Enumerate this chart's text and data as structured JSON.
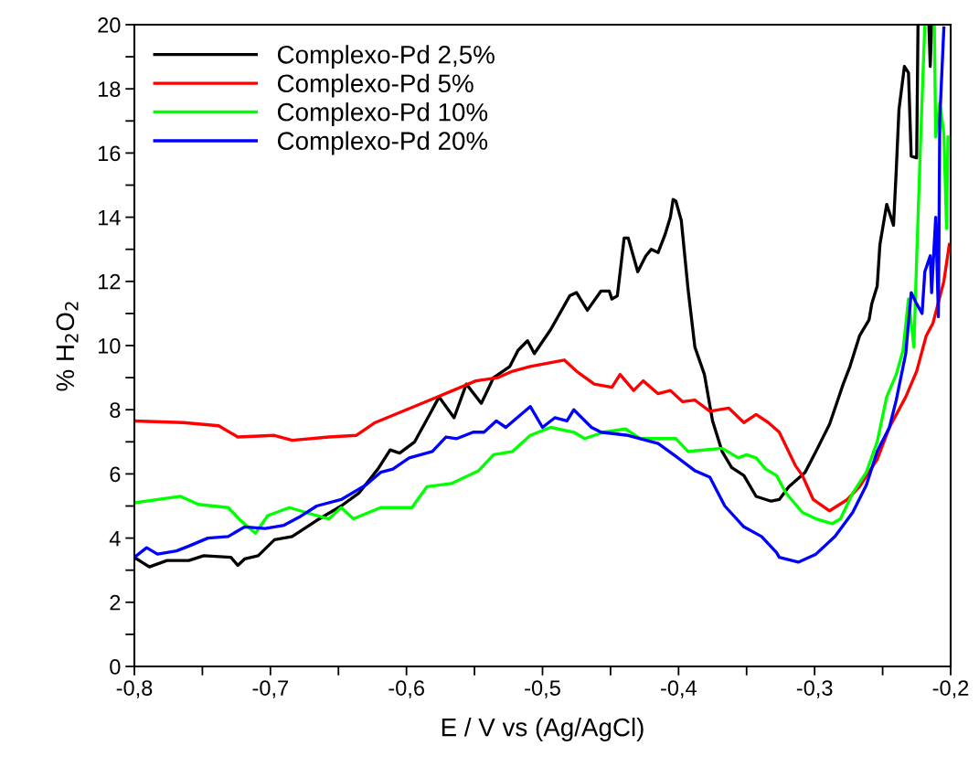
{
  "chart_data": {
    "type": "line",
    "xlabel": "E / V vs (Ag/AgCl)",
    "ylabel": "% H$_{2}$O$_{2}$",
    "xlim": [
      -0.8,
      -0.2
    ],
    "ylim": [
      0,
      20
    ],
    "xticks": [
      {
        "value": -0.8,
        "label": "-0,8"
      },
      {
        "value": -0.75,
        "label": null
      },
      {
        "value": -0.7,
        "label": "-0,7"
      },
      {
        "value": -0.65,
        "label": null
      },
      {
        "value": -0.6,
        "label": "-0,6"
      },
      {
        "value": -0.55,
        "label": null
      },
      {
        "value": -0.5,
        "label": "-0,5"
      },
      {
        "value": -0.45,
        "label": null
      },
      {
        "value": -0.4,
        "label": "-0,4"
      },
      {
        "value": -0.35,
        "label": null
      },
      {
        "value": -0.3,
        "label": "-0,3"
      },
      {
        "value": -0.25,
        "label": null
      },
      {
        "value": -0.2,
        "label": "-0,2"
      }
    ],
    "yticks": [
      0,
      {
        "value": 1,
        "label": null
      },
      2,
      {
        "value": 3,
        "label": null
      },
      4,
      {
        "value": 5,
        "label": null
      },
      6,
      {
        "value": 7,
        "label": null
      },
      8,
      {
        "value": 9,
        "label": null
      },
      10,
      {
        "value": 11,
        "label": null
      },
      12,
      {
        "value": 13,
        "label": null
      },
      14,
      {
        "value": 15,
        "label": null
      },
      16,
      {
        "value": 17,
        "label": null
      },
      18,
      {
        "value": 19,
        "label": null
      },
      20
    ],
    "grid": false,
    "legend": "top left",
    "marker": "none",
    "line_style": "solid",
    "series": [
      {
        "name": "Complexo-Pd 2,5%",
        "color": "#000000",
        "x": [
          -0.8,
          -0.789,
          -0.776,
          -0.76,
          -0.749,
          -0.729,
          -0.724,
          -0.719,
          -0.709,
          -0.697,
          -0.684,
          -0.666,
          -0.648,
          -0.635,
          -0.621,
          -0.612,
          -0.605,
          -0.594,
          -0.583,
          -0.576,
          -0.565,
          -0.556,
          -0.545,
          -0.536,
          -0.524,
          -0.518,
          -0.511,
          -0.506,
          -0.494,
          -0.48,
          -0.475,
          -0.467,
          -0.457,
          -0.451,
          -0.449,
          -0.445,
          -0.44,
          -0.437,
          -0.43,
          -0.424,
          -0.42,
          -0.415,
          -0.41,
          -0.406,
          -0.404,
          -0.402,
          -0.398,
          -0.393,
          -0.388,
          -0.381,
          -0.375,
          -0.368,
          -0.361,
          -0.352,
          -0.343,
          -0.332,
          -0.326,
          -0.319,
          -0.307,
          -0.299,
          -0.289,
          -0.283,
          -0.279,
          -0.274,
          -0.267,
          -0.26,
          -0.258,
          -0.254,
          -0.252,
          -0.247,
          -0.242,
          -0.24,
          -0.238,
          -0.234,
          -0.231,
          -0.229,
          -0.225,
          -0.224,
          -0.22,
          -0.216,
          -0.215,
          -0.214
        ],
        "values": [
          3.4,
          3.1,
          3.3,
          3.3,
          3.45,
          3.4,
          3.15,
          3.35,
          3.45,
          3.95,
          4.05,
          4.55,
          5.0,
          5.4,
          6.15,
          6.75,
          6.65,
          7.0,
          7.85,
          8.4,
          7.75,
          8.8,
          8.2,
          9.0,
          9.35,
          9.85,
          10.15,
          9.75,
          10.5,
          11.55,
          11.65,
          11.1,
          11.7,
          11.7,
          11.45,
          11.55,
          13.35,
          13.35,
          12.3,
          12.8,
          13.0,
          12.9,
          13.45,
          14.0,
          14.55,
          14.5,
          13.9,
          11.75,
          9.95,
          9.1,
          7.65,
          6.7,
          6.2,
          5.95,
          5.3,
          5.15,
          5.2,
          5.6,
          6.05,
          6.7,
          7.55,
          8.3,
          8.8,
          9.35,
          10.3,
          10.8,
          11.3,
          11.85,
          13.15,
          14.4,
          13.75,
          15.45,
          17.35,
          18.7,
          18.5,
          15.9,
          15.85,
          20.0,
          null,
          20.0,
          18.7,
          20.0
        ]
      },
      {
        "name": "Complexo-Pd 5%",
        "color": "#ff0000",
        "x": [
          -0.8,
          -0.764,
          -0.738,
          -0.724,
          -0.697,
          -0.684,
          -0.657,
          -0.637,
          -0.623,
          -0.603,
          -0.583,
          -0.563,
          -0.549,
          -0.533,
          -0.522,
          -0.509,
          -0.484,
          -0.475,
          -0.462,
          -0.449,
          -0.443,
          -0.433,
          -0.426,
          -0.415,
          -0.406,
          -0.397,
          -0.388,
          -0.377,
          -0.363,
          -0.352,
          -0.343,
          -0.334,
          -0.326,
          -0.314,
          -0.309,
          -0.301,
          -0.289,
          -0.276,
          -0.267,
          -0.254,
          -0.245,
          -0.233,
          -0.225,
          -0.218,
          -0.213,
          -0.205,
          -0.201
        ],
        "values": [
          7.65,
          7.6,
          7.5,
          7.15,
          7.2,
          7.05,
          7.15,
          7.2,
          7.6,
          7.95,
          8.3,
          8.65,
          8.9,
          9.0,
          9.2,
          9.35,
          9.55,
          9.2,
          8.8,
          8.7,
          9.1,
          8.6,
          8.9,
          8.5,
          8.6,
          8.25,
          8.3,
          7.95,
          8.05,
          7.6,
          7.85,
          7.6,
          7.3,
          6.25,
          5.95,
          5.2,
          4.85,
          5.2,
          5.6,
          6.45,
          7.45,
          8.4,
          9.2,
          10.3,
          10.7,
          12.0,
          13.15
        ]
      },
      {
        "name": "Complexo-Pd 10%",
        "color": "#00ff00",
        "x": [
          -0.8,
          -0.766,
          -0.753,
          -0.731,
          -0.722,
          -0.711,
          -0.702,
          -0.686,
          -0.67,
          -0.657,
          -0.648,
          -0.639,
          -0.619,
          -0.596,
          -0.585,
          -0.567,
          -0.547,
          -0.536,
          -0.522,
          -0.509,
          -0.494,
          -0.477,
          -0.469,
          -0.455,
          -0.439,
          -0.428,
          -0.415,
          -0.402,
          -0.393,
          -0.368,
          -0.356,
          -0.35,
          -0.343,
          -0.336,
          -0.328,
          -0.321,
          -0.309,
          -0.299,
          -0.287,
          -0.281,
          -0.272,
          -0.262,
          -0.254,
          -0.247,
          -0.24,
          -0.235,
          -0.231,
          -0.227,
          -0.225,
          -0.222,
          -0.219,
          -0.215,
          -0.212,
          -0.211,
          -0.208,
          -0.205,
          -0.203,
          -0.202
        ],
        "values": [
          5.1,
          5.3,
          5.05,
          4.95,
          4.55,
          4.15,
          4.7,
          4.95,
          4.75,
          4.6,
          4.95,
          4.6,
          4.95,
          4.95,
          5.6,
          5.7,
          6.1,
          6.6,
          6.7,
          7.2,
          7.45,
          7.3,
          7.1,
          7.3,
          7.4,
          7.1,
          7.1,
          7.1,
          6.7,
          6.8,
          6.5,
          6.6,
          6.5,
          6.15,
          5.95,
          5.4,
          4.8,
          4.6,
          4.45,
          4.6,
          5.4,
          6.05,
          7.0,
          8.4,
          9.1,
          9.85,
          11.45,
          9.95,
          12.7,
          16.5,
          20.0,
          null,
          20.0,
          16.5,
          17.55,
          16.6,
          13.65,
          16.5
        ]
      },
      {
        "name": "Complexo-Pd 20%",
        "color": "#0000ff",
        "x": [
          -0.8,
          -0.791,
          -0.783,
          -0.769,
          -0.76,
          -0.746,
          -0.731,
          -0.719,
          -0.704,
          -0.69,
          -0.679,
          -0.666,
          -0.648,
          -0.63,
          -0.619,
          -0.61,
          -0.598,
          -0.581,
          -0.571,
          -0.563,
          -0.551,
          -0.543,
          -0.534,
          -0.527,
          -0.509,
          -0.5,
          -0.491,
          -0.482,
          -0.477,
          -0.464,
          -0.457,
          -0.437,
          -0.415,
          -0.402,
          -0.388,
          -0.377,
          -0.366,
          -0.352,
          -0.339,
          -0.328,
          -0.326,
          -0.312,
          -0.299,
          -0.285,
          -0.272,
          -0.262,
          -0.254,
          -0.245,
          -0.24,
          -0.233,
          -0.229,
          -0.225,
          -0.221,
          -0.219,
          -0.215,
          -0.214,
          -0.211,
          -0.209,
          -0.208,
          -0.205
        ],
        "values": [
          3.4,
          3.7,
          3.5,
          3.6,
          3.75,
          4.0,
          4.05,
          4.35,
          4.3,
          4.4,
          4.65,
          5.0,
          5.2,
          5.65,
          6.05,
          6.15,
          6.5,
          6.7,
          7.15,
          7.1,
          7.3,
          7.3,
          7.65,
          7.45,
          8.1,
          7.45,
          7.75,
          7.65,
          8.0,
          7.45,
          7.3,
          7.2,
          6.95,
          6.55,
          6.1,
          5.9,
          5.0,
          4.35,
          4.05,
          3.55,
          3.4,
          3.25,
          3.5,
          4.05,
          4.8,
          5.65,
          6.7,
          7.45,
          8.3,
          9.75,
          11.65,
          11.3,
          11.0,
          12.3,
          12.8,
          11.65,
          14.0,
          10.9,
          17.05,
          19.9
        ]
      }
    ]
  }
}
